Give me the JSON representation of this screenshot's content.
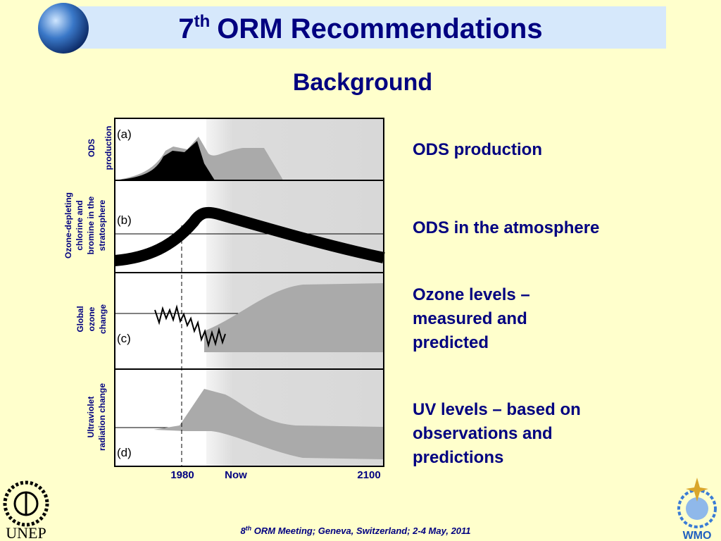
{
  "header": {
    "title": {
      "number": "7",
      "sup": "th",
      "rest": "ORM Recommendations"
    },
    "subtitle": "Background"
  },
  "figure": {
    "panels": [
      {
        "tag": "(a)",
        "axis_label": [
          "ODS",
          "production"
        ]
      },
      {
        "tag": "(b)",
        "axis_label": [
          "Ozone-depleting",
          "chlorine and",
          "bromine in the",
          "stratosphere"
        ]
      },
      {
        "tag": "(c)",
        "axis_label": [
          "Global",
          "ozone",
          "change"
        ]
      },
      {
        "tag": "(d)",
        "axis_label": [
          "Ultraviolet",
          "radiation change"
        ]
      }
    ],
    "x_labels": [
      "1980",
      "Now",
      "2100"
    ]
  },
  "list": [
    "ODS production",
    "ODS in the atmosphere",
    "Ozone levels – measured and predicted",
    "UV levels – based on observations and predictions"
  ],
  "footer": {
    "number": "8",
    "sup": "th",
    "rest": " ORM Meeting; Geneva, Switzerland; 2-4 May, 2011"
  },
  "logos": {
    "left": "UNEP",
    "right": "WMO"
  }
}
